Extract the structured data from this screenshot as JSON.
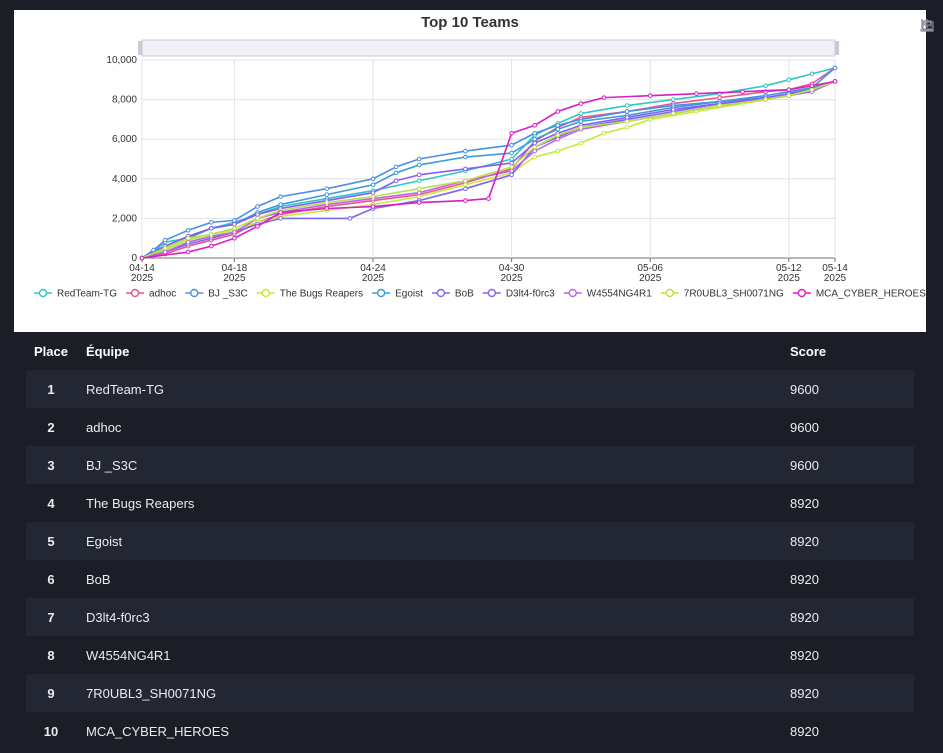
{
  "chart": {
    "title": "Top 10 Teams",
    "tools": [
      "zoom-icon",
      "zoom-reset-icon",
      "download-icon"
    ]
  },
  "chart_data": {
    "type": "line",
    "title": "Top 10 Teams",
    "xlabel": "",
    "ylabel": "",
    "x_ticks": [
      "04-14 2025",
      "04-18 2025",
      "04-24 2025",
      "04-30 2025",
      "05-06 2025",
      "05-12 2025",
      "05-14 2025"
    ],
    "y_ticks": [
      "0",
      "2,000",
      "4,000",
      "6,000",
      "8,000",
      "10,000"
    ],
    "ylim": [
      0,
      10000
    ],
    "xlim": [
      "2025-04-14",
      "2025-05-14"
    ],
    "grid": true,
    "legend_position": "bottom",
    "series": [
      {
        "name": "RedTeam-TG",
        "color": "#2ec7c9",
        "points": [
          [
            "2025-04-14",
            0
          ],
          [
            "2025-04-14T12",
            300
          ],
          [
            "2025-04-15",
            800
          ],
          [
            "2025-04-16",
            1000
          ],
          [
            "2025-04-17",
            1500
          ],
          [
            "2025-04-18",
            1800
          ],
          [
            "2025-04-19",
            2200
          ],
          [
            "2025-04-20",
            2600
          ],
          [
            "2025-04-22",
            3000
          ],
          [
            "2025-04-24",
            3400
          ],
          [
            "2025-04-26",
            3900
          ],
          [
            "2025-04-28",
            4400
          ],
          [
            "2025-04-30",
            5000
          ],
          [
            "2025-05-01",
            6200
          ],
          [
            "2025-05-02",
            6800
          ],
          [
            "2025-05-03",
            7300
          ],
          [
            "2025-05-05",
            7700
          ],
          [
            "2025-05-07",
            8000
          ],
          [
            "2025-05-09",
            8300
          ],
          [
            "2025-05-11",
            8700
          ],
          [
            "2025-05-12",
            9000
          ],
          [
            "2025-05-13",
            9300
          ],
          [
            "2025-05-14",
            9600
          ]
        ]
      },
      {
        "name": "adhoc",
        "color": "#e8568b",
        "points": [
          [
            "2025-04-14",
            0
          ],
          [
            "2025-04-15",
            200
          ],
          [
            "2025-04-16",
            600
          ],
          [
            "2025-04-17",
            900
          ],
          [
            "2025-04-18",
            1200
          ],
          [
            "2025-04-19",
            1800
          ],
          [
            "2025-04-20",
            2200
          ],
          [
            "2025-04-22",
            2600
          ],
          [
            "2025-04-24",
            2900
          ],
          [
            "2025-04-26",
            3200
          ],
          [
            "2025-04-28",
            3800
          ],
          [
            "2025-04-30",
            4500
          ],
          [
            "2025-05-01",
            5900
          ],
          [
            "2025-05-02",
            6600
          ],
          [
            "2025-05-03",
            7100
          ],
          [
            "2025-05-05",
            7400
          ],
          [
            "2025-05-07",
            7800
          ],
          [
            "2025-05-09",
            8100
          ],
          [
            "2025-05-11",
            8400
          ],
          [
            "2025-05-12",
            8500
          ],
          [
            "2025-05-13",
            8800
          ],
          [
            "2025-05-14",
            9600
          ]
        ]
      },
      {
        "name": "BJ _S3C",
        "color": "#4a90e2",
        "points": [
          [
            "2025-04-14",
            0
          ],
          [
            "2025-04-14T12",
            400
          ],
          [
            "2025-04-15",
            900
          ],
          [
            "2025-04-16",
            1400
          ],
          [
            "2025-04-17",
            1800
          ],
          [
            "2025-04-18",
            1900
          ],
          [
            "2025-04-19",
            2600
          ],
          [
            "2025-04-20",
            3100
          ],
          [
            "2025-04-22",
            3500
          ],
          [
            "2025-04-24",
            4000
          ],
          [
            "2025-04-25",
            4600
          ],
          [
            "2025-04-26",
            5000
          ],
          [
            "2025-04-28",
            5400
          ],
          [
            "2025-04-30",
            5700
          ],
          [
            "2025-05-01",
            6300
          ],
          [
            "2025-05-02",
            6700
          ],
          [
            "2025-05-03",
            7000
          ],
          [
            "2025-05-05",
            7400
          ],
          [
            "2025-05-07",
            7700
          ],
          [
            "2025-05-09",
            7900
          ],
          [
            "2025-05-11",
            8200
          ],
          [
            "2025-05-12",
            8400
          ],
          [
            "2025-05-13",
            8600
          ],
          [
            "2025-05-14",
            9600
          ]
        ]
      },
      {
        "name": "The Bugs Reapers",
        "color": "#c5ea3a",
        "points": [
          [
            "2025-04-14",
            0
          ],
          [
            "2025-04-15",
            400
          ],
          [
            "2025-04-16",
            900
          ],
          [
            "2025-04-17",
            1200
          ],
          [
            "2025-04-18",
            1400
          ],
          [
            "2025-04-19",
            1800
          ],
          [
            "2025-04-20",
            2100
          ],
          [
            "2025-04-22",
            2400
          ],
          [
            "2025-04-24",
            2700
          ],
          [
            "2025-04-26",
            3100
          ],
          [
            "2025-04-28",
            3700
          ],
          [
            "2025-04-30",
            4300
          ],
          [
            "2025-05-01",
            5100
          ],
          [
            "2025-05-02",
            5400
          ],
          [
            "2025-05-03",
            5800
          ],
          [
            "2025-05-04",
            6300
          ],
          [
            "2025-05-05",
            6600
          ],
          [
            "2025-05-06",
            7000
          ],
          [
            "2025-05-08",
            7400
          ],
          [
            "2025-05-10",
            7800
          ],
          [
            "2025-05-12",
            8200
          ],
          [
            "2025-05-13",
            8600
          ],
          [
            "2025-05-14",
            8920
          ]
        ]
      },
      {
        "name": "Egoist",
        "color": "#3d9bd6",
        "points": [
          [
            "2025-04-14",
            0
          ],
          [
            "2025-04-15",
            500
          ],
          [
            "2025-04-16",
            1000
          ],
          [
            "2025-04-17",
            1500
          ],
          [
            "2025-04-18",
            1700
          ],
          [
            "2025-04-19",
            2300
          ],
          [
            "2025-04-20",
            2700
          ],
          [
            "2025-04-22",
            3200
          ],
          [
            "2025-04-24",
            3700
          ],
          [
            "2025-04-25",
            4300
          ],
          [
            "2025-04-26",
            4700
          ],
          [
            "2025-04-28",
            5100
          ],
          [
            "2025-04-30",
            5300
          ],
          [
            "2025-05-01",
            6000
          ],
          [
            "2025-05-02",
            6500
          ],
          [
            "2025-05-03",
            6900
          ],
          [
            "2025-05-05",
            7200
          ],
          [
            "2025-05-07",
            7600
          ],
          [
            "2025-05-09",
            7900
          ],
          [
            "2025-05-11",
            8100
          ],
          [
            "2025-05-12",
            8300
          ],
          [
            "2025-05-13",
            8600
          ],
          [
            "2025-05-14",
            8920
          ]
        ]
      },
      {
        "name": "BoB",
        "color": "#7b68ee",
        "points": [
          [
            "2025-04-14",
            0
          ],
          [
            "2025-04-15",
            300
          ],
          [
            "2025-04-16",
            700
          ],
          [
            "2025-04-17",
            1000
          ],
          [
            "2025-04-18",
            1300
          ],
          [
            "2025-04-19",
            1700
          ],
          [
            "2025-04-20",
            2000
          ],
          [
            "2025-04-23",
            2000
          ],
          [
            "2025-04-24",
            2500
          ],
          [
            "2025-04-26",
            2900
          ],
          [
            "2025-04-28",
            3500
          ],
          [
            "2025-04-30",
            4200
          ],
          [
            "2025-05-01",
            5600
          ],
          [
            "2025-05-02",
            6100
          ],
          [
            "2025-05-03",
            6600
          ],
          [
            "2025-05-05",
            7000
          ],
          [
            "2025-05-07",
            7400
          ],
          [
            "2025-05-09",
            7800
          ],
          [
            "2025-05-11",
            8100
          ],
          [
            "2025-05-12",
            8300
          ],
          [
            "2025-05-13",
            8500
          ],
          [
            "2025-05-14",
            8920
          ]
        ]
      },
      {
        "name": "D3lt4-f0rc3",
        "color": "#8a5cf6",
        "points": [
          [
            "2025-04-14",
            0
          ],
          [
            "2025-04-15",
            600
          ],
          [
            "2025-04-16",
            1100
          ],
          [
            "2025-04-17",
            1500
          ],
          [
            "2025-04-18",
            1700
          ],
          [
            "2025-04-19",
            2200
          ],
          [
            "2025-04-20",
            2500
          ],
          [
            "2025-04-22",
            2900
          ],
          [
            "2025-04-24",
            3300
          ],
          [
            "2025-04-25",
            3900
          ],
          [
            "2025-04-26",
            4200
          ],
          [
            "2025-04-28",
            4500
          ],
          [
            "2025-04-30",
            4800
          ],
          [
            "2025-05-01",
            5800
          ],
          [
            "2025-05-02",
            6300
          ],
          [
            "2025-05-03",
            6700
          ],
          [
            "2025-05-05",
            7100
          ],
          [
            "2025-05-07",
            7500
          ],
          [
            "2025-05-09",
            7800
          ],
          [
            "2025-05-11",
            8000
          ],
          [
            "2025-05-12",
            8200
          ],
          [
            "2025-05-13",
            8500
          ],
          [
            "2025-05-14",
            8920
          ]
        ]
      },
      {
        "name": "W4554NG4R1",
        "color": "#c061e8",
        "points": [
          [
            "2025-04-14",
            0
          ],
          [
            "2025-04-15",
            300
          ],
          [
            "2025-04-16",
            800
          ],
          [
            "2025-04-17",
            1100
          ],
          [
            "2025-04-18",
            1300
          ],
          [
            "2025-04-19",
            2000
          ],
          [
            "2025-04-20",
            2300
          ],
          [
            "2025-04-22",
            2700
          ],
          [
            "2025-04-24",
            3000
          ],
          [
            "2025-04-26",
            3300
          ],
          [
            "2025-04-28",
            3900
          ],
          [
            "2025-04-30",
            4400
          ],
          [
            "2025-05-01",
            5400
          ],
          [
            "2025-05-02",
            6000
          ],
          [
            "2025-05-03",
            6500
          ],
          [
            "2025-05-05",
            6900
          ],
          [
            "2025-05-07",
            7300
          ],
          [
            "2025-05-09",
            7700
          ],
          [
            "2025-05-11",
            8000
          ],
          [
            "2025-05-12",
            8200
          ],
          [
            "2025-05-13",
            8400
          ],
          [
            "2025-05-14",
            8920
          ]
        ]
      },
      {
        "name": "7R0UBL3_SH0071NG",
        "color": "#b7e04b",
        "points": [
          [
            "2025-04-14",
            0
          ],
          [
            "2025-04-15",
            500
          ],
          [
            "2025-04-16",
            1000
          ],
          [
            "2025-04-17",
            1200
          ],
          [
            "2025-04-18",
            1500
          ],
          [
            "2025-04-19",
            2000
          ],
          [
            "2025-04-20",
            2400
          ],
          [
            "2025-04-22",
            2800
          ],
          [
            "2025-04-24",
            3100
          ],
          [
            "2025-04-26",
            3500
          ],
          [
            "2025-04-28",
            3900
          ],
          [
            "2025-04-30",
            4600
          ],
          [
            "2025-05-01",
            5600
          ],
          [
            "2025-05-02",
            6200
          ],
          [
            "2025-05-03",
            6600
          ],
          [
            "2025-05-05",
            6900
          ],
          [
            "2025-05-07",
            7300
          ],
          [
            "2025-05-09",
            7700
          ],
          [
            "2025-05-11",
            8000
          ],
          [
            "2025-05-12",
            8200
          ],
          [
            "2025-05-13",
            8500
          ],
          [
            "2025-05-14",
            8920
          ]
        ]
      },
      {
        "name": "MCA_CYBER_HEROES",
        "color": "#d81ec8",
        "points": [
          [
            "2025-04-14",
            0
          ],
          [
            "2025-04-16",
            300
          ],
          [
            "2025-04-17",
            600
          ],
          [
            "2025-04-18",
            1000
          ],
          [
            "2025-04-19",
            1600
          ],
          [
            "2025-04-20",
            2300
          ],
          [
            "2025-04-22",
            2500
          ],
          [
            "2025-04-24",
            2600
          ],
          [
            "2025-04-26",
            2800
          ],
          [
            "2025-04-28",
            2900
          ],
          [
            "2025-04-29",
            3000
          ],
          [
            "2025-04-30",
            6300
          ],
          [
            "2025-05-01",
            6700
          ],
          [
            "2025-05-02",
            7400
          ],
          [
            "2025-05-03",
            7800
          ],
          [
            "2025-05-04",
            8100
          ],
          [
            "2025-05-06",
            8200
          ],
          [
            "2025-05-08",
            8300
          ],
          [
            "2025-05-10",
            8400
          ],
          [
            "2025-05-12",
            8500
          ],
          [
            "2025-05-13",
            8700
          ],
          [
            "2025-05-14",
            8920
          ]
        ]
      }
    ]
  },
  "table": {
    "headers": {
      "place": "Place",
      "team": "Équipe",
      "score": "Score"
    },
    "rows": [
      {
        "place": "1",
        "team": "RedTeam-TG",
        "score": "9600"
      },
      {
        "place": "2",
        "team": "adhoc",
        "score": "9600"
      },
      {
        "place": "3",
        "team": "BJ _S3C",
        "score": "9600"
      },
      {
        "place": "4",
        "team": "The Bugs Reapers",
        "score": "8920"
      },
      {
        "place": "5",
        "team": "Egoist",
        "score": "8920"
      },
      {
        "place": "6",
        "team": "BoB",
        "score": "8920"
      },
      {
        "place": "7",
        "team": "D3lt4-f0rc3",
        "score": "8920"
      },
      {
        "place": "8",
        "team": "W4554NG4R1",
        "score": "8920"
      },
      {
        "place": "9",
        "team": "7R0UBL3_SH0071NG",
        "score": "8920"
      },
      {
        "place": "10",
        "team": "MCA_CYBER_HEROES",
        "score": "8920"
      }
    ]
  }
}
